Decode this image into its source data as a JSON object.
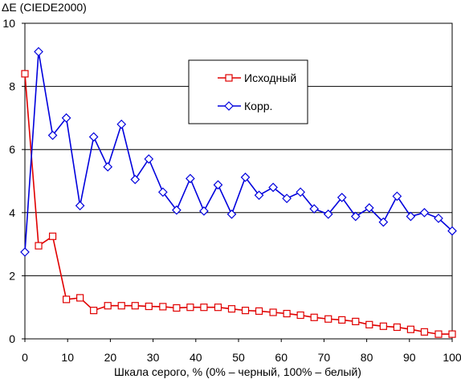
{
  "chart_data": {
    "type": "line",
    "title": "",
    "ylabel": "ΔE (CIEDE2000)",
    "xlabel": "Шкала серого, % (0% – черный, 100% – белый)",
    "xlim": [
      0,
      100
    ],
    "ylim": [
      0,
      10
    ],
    "x_ticks": [
      0,
      10,
      20,
      30,
      40,
      50,
      60,
      70,
      80,
      90,
      100
    ],
    "y_ticks": [
      0,
      2,
      4,
      6,
      8,
      10
    ],
    "grid": "horizontal",
    "legend_position": "top-center",
    "x": [
      0,
      3.2,
      6.5,
      9.7,
      12.9,
      16.1,
      19.4,
      22.6,
      25.8,
      29.0,
      32.3,
      35.5,
      38.7,
      41.9,
      45.2,
      48.4,
      51.6,
      54.8,
      58.1,
      61.3,
      64.5,
      67.7,
      71.0,
      74.2,
      77.4,
      80.6,
      83.9,
      87.1,
      90.3,
      93.5,
      96.8,
      100
    ],
    "series": [
      {
        "name": "Исходный",
        "color": "#e00000",
        "marker": "square",
        "values": [
          8.4,
          2.95,
          3.25,
          1.25,
          1.3,
          0.9,
          1.05,
          1.05,
          1.05,
          1.03,
          1.02,
          0.98,
          1.0,
          1.0,
          1.0,
          0.95,
          0.9,
          0.88,
          0.84,
          0.8,
          0.75,
          0.68,
          0.63,
          0.6,
          0.55,
          0.45,
          0.4,
          0.37,
          0.3,
          0.22,
          0.15,
          0.15
        ]
      },
      {
        "name": "Корр.",
        "color": "#0000dd",
        "marker": "diamond",
        "values": [
          2.75,
          9.1,
          6.45,
          7.0,
          4.22,
          6.4,
          5.45,
          6.8,
          5.05,
          5.7,
          4.65,
          4.08,
          5.08,
          4.05,
          4.88,
          3.95,
          5.12,
          4.55,
          4.8,
          4.45,
          4.65,
          4.12,
          3.95,
          4.48,
          3.88,
          4.15,
          3.7,
          4.52,
          3.88,
          4.0,
          3.82,
          3.42
        ]
      }
    ]
  }
}
